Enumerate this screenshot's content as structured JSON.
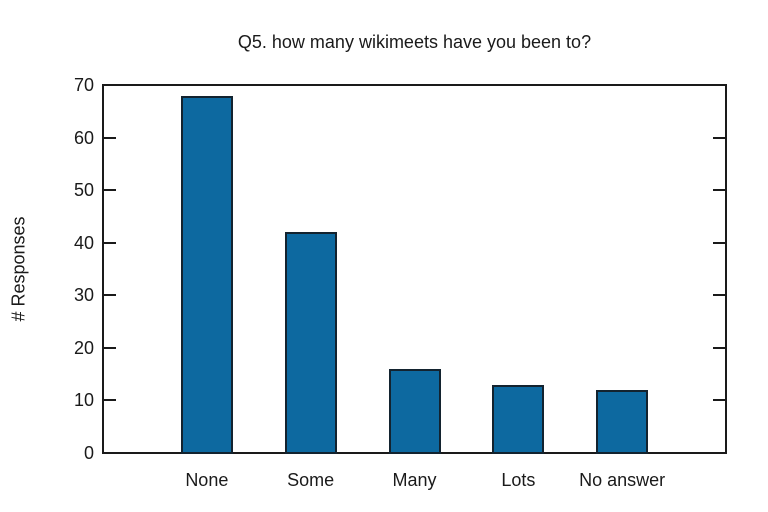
{
  "chart_data": {
    "type": "bar",
    "title": "Q5. how many wikimeets have you been to?",
    "categories": [
      "None",
      "Some",
      "Many",
      "Lots",
      "No answer"
    ],
    "values": [
      68,
      42,
      16,
      13,
      12
    ],
    "xlabel": "",
    "ylabel": "# Responses",
    "ylim": [
      0,
      70
    ],
    "yticks": [
      0,
      10,
      20,
      30,
      40,
      50,
      60,
      70
    ],
    "grid": false,
    "legend": "none",
    "bar_color": "#0d69a0",
    "bar_border_color": "#13232f",
    "axis_color": "#1a1a1a",
    "background_color": "#ffffff"
  }
}
